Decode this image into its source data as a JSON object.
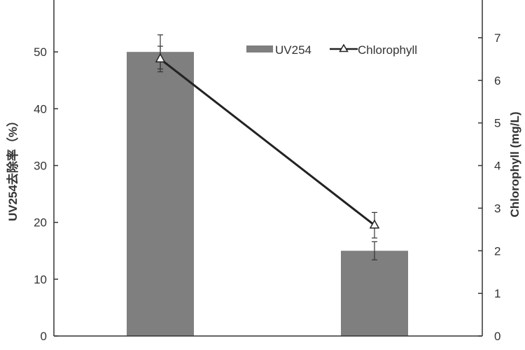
{
  "chart_data": {
    "type": "bar",
    "categories": [
      "",
      ""
    ],
    "series": [
      {
        "name": "UV254",
        "type": "bar",
        "axis": "left",
        "values": [
          50,
          15
        ],
        "error": [
          3,
          1.6
        ],
        "color": "#7f7f7f"
      },
      {
        "name": "Chlorophyll",
        "type": "line",
        "axis": "right",
        "marker": "triangle",
        "values": [
          6.5,
          2.6
        ],
        "error": [
          0.3,
          0.3
        ],
        "color": "#222222"
      }
    ],
    "ylabel": "UV254去除率（%）",
    "y2label": "Chlorophyll (mg/L)",
    "ylim": [
      0,
      60
    ],
    "y2lim": [
      0,
      8
    ],
    "yticks": [
      "0",
      "10",
      "20",
      "30",
      "40",
      "50"
    ],
    "y2ticks": [
      "0",
      "1",
      "2",
      "3",
      "4",
      "5",
      "6",
      "7"
    ],
    "grid": false,
    "legend_position": "top-right",
    "legend": [
      {
        "label": "UV254",
        "symbol": "bar"
      },
      {
        "label": "Chlorophyll",
        "symbol": "line-triangle"
      }
    ]
  }
}
